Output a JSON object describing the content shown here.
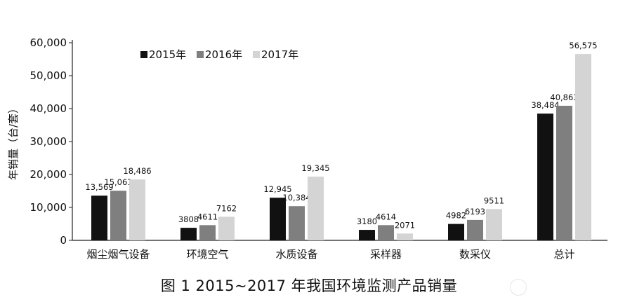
{
  "figure": {
    "caption": "图 1 2015~2017 年我国环境监测产品销量"
  },
  "chart_data": {
    "type": "bar",
    "title": "",
    "xlabel": "",
    "ylabel": "年销量（台/套）",
    "ylim": [
      0,
      60000
    ],
    "yticks": [
      "0",
      "10,000",
      "20,000",
      "30,000",
      "40,000",
      "50,000",
      "60,000"
    ],
    "legend_position": "top-left",
    "grid": false,
    "categories": [
      "烟尘烟气设备",
      "环境空气",
      "水质设备",
      "采样器",
      "数采仪",
      "总计"
    ],
    "series": [
      {
        "name": "2015年",
        "color": "#111111",
        "values": [
          13569,
          3808,
          12945,
          3180,
          4982,
          38484
        ],
        "labels": [
          "13,569",
          "3808",
          "12,945",
          "3180",
          "4982",
          "38,484"
        ]
      },
      {
        "name": "2016年",
        "color": "#7f7f7f",
        "values": [
          15061,
          4611,
          10384,
          4614,
          6193,
          40863
        ],
        "labels": [
          "15,061",
          "4611",
          "10,384",
          "4614",
          "6193",
          "40,863"
        ]
      },
      {
        "name": "2017年",
        "color": "#d4d4d4",
        "values": [
          18486,
          7162,
          19345,
          2071,
          9511,
          56575
        ],
        "labels": [
          "18,486",
          "7162",
          "19,345",
          "2071",
          "9511",
          "56,575"
        ]
      }
    ]
  }
}
